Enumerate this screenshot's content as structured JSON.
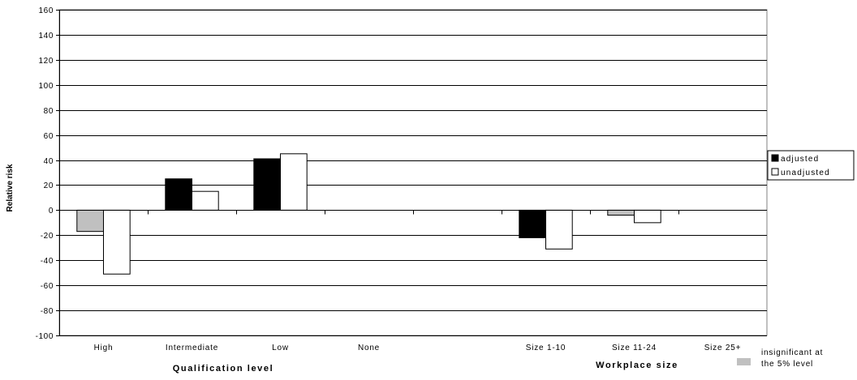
{
  "chart_data": {
    "type": "bar",
    "ylabel": "Relative risk",
    "ylim": [
      -100,
      160
    ],
    "yticks": [
      160,
      140,
      120,
      100,
      80,
      60,
      40,
      20,
      0,
      -20,
      -40,
      -60,
      -80,
      -100
    ],
    "grid": true,
    "categories": [
      "High",
      "Intermediate",
      "Low",
      "None",
      "",
      "Size 1-10",
      "Size 11-24",
      "Size 25+"
    ],
    "groups": [
      {
        "label": "Qualification level",
        "categories": [
          "High",
          "Intermediate",
          "Low",
          "None"
        ]
      },
      {
        "label": "Workplace size",
        "categories": [
          "Size 1-10",
          "Size 11-24",
          "Size 25+"
        ]
      }
    ],
    "series": [
      {
        "name": "adjusted",
        "color": "#000000",
        "values": [
          -17,
          25,
          41,
          null,
          null,
          -22,
          -4,
          null
        ],
        "insignificant": [
          true,
          false,
          false,
          false,
          false,
          false,
          true,
          false
        ]
      },
      {
        "name": "unadjusted",
        "color": "#ffffff",
        "values": [
          -51,
          15,
          45,
          null,
          null,
          -31,
          -10,
          null
        ],
        "insignificant": [
          false,
          false,
          false,
          false,
          false,
          false,
          false,
          false
        ]
      }
    ],
    "insignificant_color": "#c0c0c0",
    "legend": {
      "position": "right",
      "entries": [
        "adjusted",
        "unadjusted"
      ],
      "note_lines": [
        "insignificant at",
        "the 5% level"
      ]
    }
  }
}
